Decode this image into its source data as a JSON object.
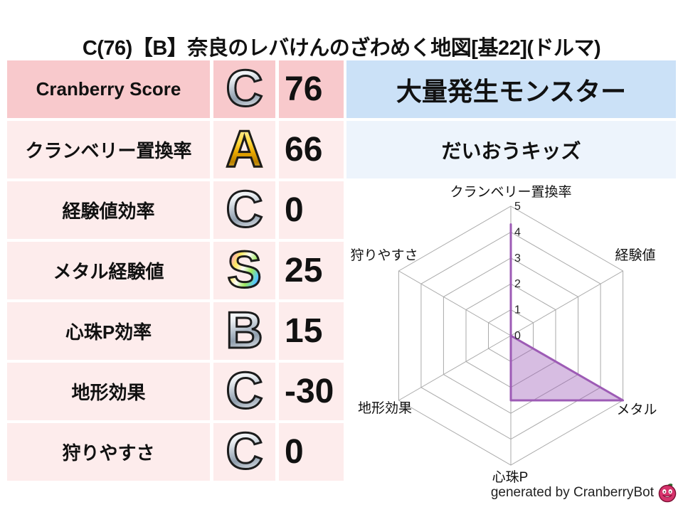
{
  "title": "C(76)【B】奈良のレバけんのざわめく地図[基22](ドルマ)",
  "score_table": {
    "rows": [
      {
        "label": "Cranberry Score",
        "grade": "C",
        "grade_style": "silver",
        "value": "76",
        "highlight": true
      },
      {
        "label": "クランベリー置換率",
        "grade": "A",
        "grade_style": "gold",
        "value": "66",
        "highlight": false
      },
      {
        "label": "経験値効率",
        "grade": "C",
        "grade_style": "silver",
        "value": "0",
        "highlight": false
      },
      {
        "label": "メタル経験値",
        "grade": "S",
        "grade_style": "rainbow",
        "value": "25",
        "highlight": false
      },
      {
        "label": "心珠P効率",
        "grade": "B",
        "grade_style": "silver",
        "value": "15",
        "highlight": false
      },
      {
        "label": "地形効果",
        "grade": "C",
        "grade_style": "silver",
        "value": "-30",
        "highlight": false
      },
      {
        "label": "狩りやすさ",
        "grade": "C",
        "grade_style": "silver",
        "value": "0",
        "highlight": false
      }
    ]
  },
  "monster_panel": {
    "header": "大量発生モンスター",
    "name": "だいおうキッズ"
  },
  "chart_data": {
    "type": "radar",
    "title": "",
    "axes": [
      "クランベリー置換率",
      "経験値",
      "メタル",
      "心珠P",
      "地形効果",
      "狩りやすさ"
    ],
    "values": [
      4.3,
      0,
      5,
      2.5,
      0,
      0
    ],
    "ticks": [
      0,
      1,
      2,
      3,
      4,
      5
    ],
    "max": 5,
    "grid": true,
    "grid_shape": "hexagon",
    "grid_color": "#aaaaaa",
    "stroke_color": "#9d5bb5",
    "fill_color": "#9b59b6",
    "fill_opacity": 0.4
  },
  "credit": {
    "text": "generated by CranberryBot",
    "icon": "cranberrybot-icon"
  },
  "colors": {
    "row_highlight_bg": "#f8c9cc",
    "row_bg": "#fdecec",
    "monster_header_bg": "#cbe1f7",
    "monster_name_bg": "#edf4fc",
    "text": "#111111"
  }
}
